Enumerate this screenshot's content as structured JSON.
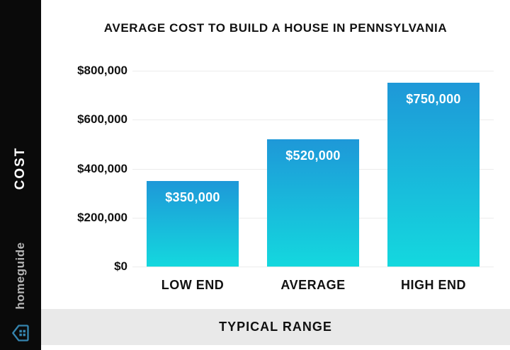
{
  "title": "AVERAGE COST TO BUILD A HOUSE IN PENNSYLVANIA",
  "sidebar": {
    "cost_label": "COST",
    "brand": "homeguide",
    "logo_icon": "house-icon"
  },
  "footer": {
    "label": "TYPICAL RANGE"
  },
  "chart_data": {
    "type": "bar",
    "title": "AVERAGE COST TO BUILD A HOUSE IN PENNSYLVANIA",
    "categories": [
      "LOW END",
      "AVERAGE",
      "HIGH END"
    ],
    "values": [
      350000,
      520000,
      750000
    ],
    "bar_labels": [
      "$350,000",
      "$520,000",
      "$750,000"
    ],
    "yticks": [
      800000,
      600000,
      400000,
      200000,
      0
    ],
    "ytick_labels": [
      "$800,000",
      "$600,000",
      "$400,000",
      "$200,000",
      "$0"
    ],
    "ylim": [
      0,
      800000
    ],
    "ylabel": "COST",
    "xlabel": "TYPICAL RANGE",
    "grid": true,
    "legend": false,
    "colors": {
      "bar_gradient_top": "#1e98d8",
      "bar_gradient_bottom": "#14d8de",
      "gridline": "#ececec",
      "footer_bg": "#e9e9e9",
      "sidebar_bg": "#0a0a0a",
      "label_text": "#111111",
      "bar_label_text": "#ffffff",
      "brand_gray": "#b3b3b3",
      "logo_blue": "#3584ae"
    }
  }
}
